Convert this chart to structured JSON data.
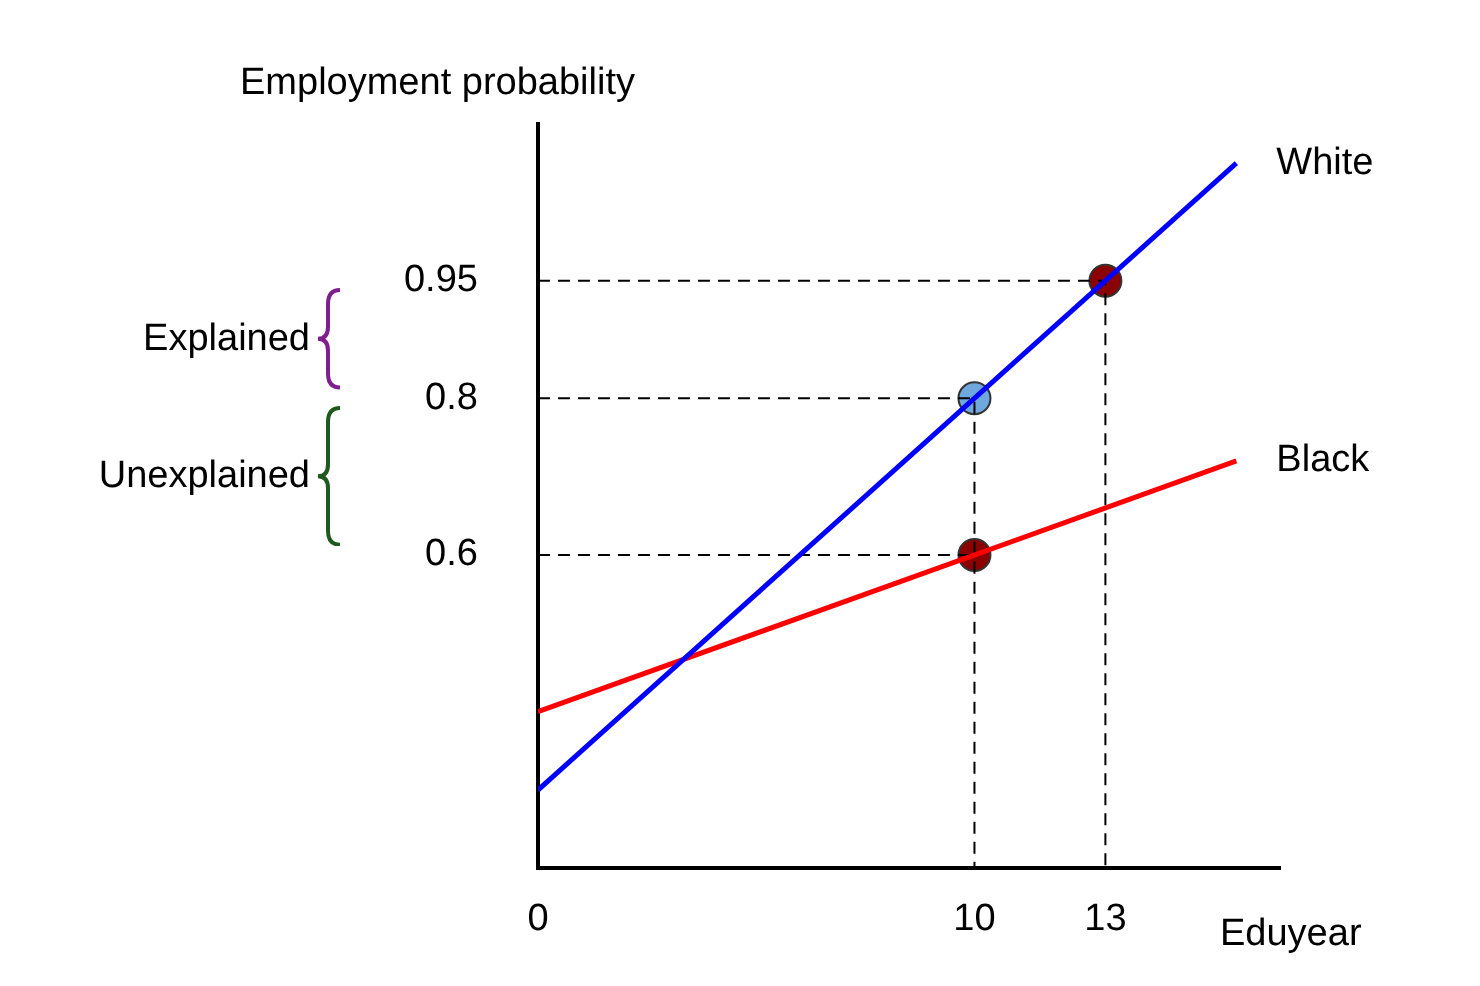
{
  "chart_data": {
    "type": "line",
    "xlabel": "Eduyear",
    "ylabel": "Employment probability",
    "xlim": [
      0,
      17
    ],
    "xticks": [
      0,
      10,
      13
    ],
    "ylim": [
      0.2,
      1.15
    ],
    "yticks": [
      0.6,
      0.8,
      0.95
    ],
    "grid": false,
    "legend": false,
    "marker": "none",
    "line_style": "solid",
    "series": [
      {
        "name": "White",
        "color": "#0000ff",
        "x": [
          0,
          16
        ],
        "values": [
          0.3,
          1.1
        ]
      },
      {
        "name": "Black",
        "color": "#ff0000",
        "x": [
          0,
          16
        ],
        "values": [
          0.4,
          0.72
        ]
      },
      {
        "color": "#000000",
        "line_style": "dashed",
        "x": [
          0,
          13,
          13
        ],
        "values": [
          0.95,
          0.95,
          0.2
        ]
      },
      {
        "color": "#000000",
        "line_style": "dashed",
        "x": [
          0,
          10,
          10
        ],
        "values": [
          0.8,
          0.8,
          0.2
        ]
      },
      {
        "color": "#000000",
        "line_style": "dashed",
        "x": [
          0,
          10
        ],
        "values": [
          0.6,
          0.6
        ]
      },
      {
        "type": "scatter",
        "marker": "circle",
        "colors": [
          "#6fa8dc",
          "#8b0000",
          "#8b0000"
        ],
        "x": [
          10,
          13,
          10
        ],
        "values": [
          0.8,
          0.95,
          0.6
        ]
      }
    ],
    "annotations": [
      "Explained",
      "Unexplained"
    ]
  }
}
